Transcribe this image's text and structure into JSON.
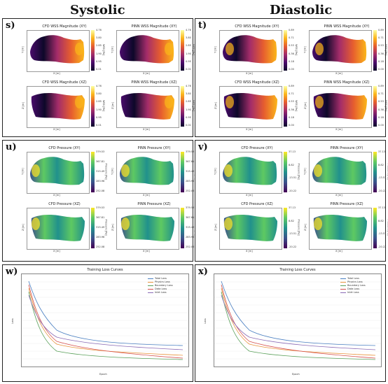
{
  "headers": {
    "systolic": "Systolic",
    "diastolic": "Diastolic"
  },
  "panels": {
    "s": {
      "label": "s)",
      "subplots": [
        {
          "title": "CFD WSS Magnitude (XY)",
          "cbar": [
            "4.76",
            "3.80",
            "2.85",
            "1.90",
            "0.95",
            "0.01"
          ],
          "cunit": "WSS [Pa]",
          "xlabel": "X [m]",
          "ylabel": "Y [m]",
          "cmap": "magma"
        },
        {
          "title": "PINN WSS Magnitude (XY)",
          "cbar": [
            "4.76",
            "3.80",
            "2.85",
            "1.90",
            "0.95",
            "0.01"
          ],
          "cunit": "WSS [Pa]",
          "xlabel": "X [m]",
          "ylabel": "Y [m]",
          "cmap": "magma"
        },
        {
          "title": "CFD WSS Magnitude (XZ)",
          "cbar": [
            "4.76",
            "3.80",
            "2.85",
            "1.90",
            "0.95",
            "0.01"
          ],
          "cunit": "WSS [Pa]",
          "xlabel": "X [m]",
          "ylabel": "Z [m]",
          "cmap": "magma"
        },
        {
          "title": "PINN WSS Magnitude (XZ)",
          "cbar": [
            "4.76",
            "3.80",
            "2.85",
            "1.90",
            "0.95",
            "0.01"
          ],
          "cunit": "WSS [Pa]",
          "xlabel": "X [m]",
          "ylabel": "Z [m]",
          "cmap": "magma"
        }
      ]
    },
    "t": {
      "label": "t)",
      "subplots": [
        {
          "title": "CFD WSS Magnitude (XY)",
          "cbar": [
            "0.89",
            "0.71",
            "0.53",
            "0.36",
            "0.18",
            "0.00"
          ],
          "cunit": "WSS [Pa]",
          "xlabel": "X [m]",
          "ylabel": "Y [m]",
          "cmap": "magma"
        },
        {
          "title": "PINN WSS Magnitude (XY)",
          "cbar": [
            "0.89",
            "0.71",
            "0.53",
            "0.36",
            "0.18",
            "0.00"
          ],
          "cunit": "WSS [Pa]",
          "xlabel": "X [m]",
          "ylabel": "Y [m]",
          "cmap": "magma"
        },
        {
          "title": "CFD WSS Magnitude (XZ)",
          "cbar": [
            "0.89",
            "0.71",
            "0.53",
            "0.36",
            "0.18",
            "0.00"
          ],
          "cunit": "WSS [Pa]",
          "xlabel": "X [m]",
          "ylabel": "Z [m]",
          "cmap": "magma"
        },
        {
          "title": "PINN WSS Magnitude (XZ)",
          "cbar": [
            "0.89",
            "0.71",
            "0.53",
            "0.36",
            "0.18",
            "0.00"
          ],
          "cunit": "WSS [Pa]",
          "xlabel": "X [m]",
          "ylabel": "Z [m]",
          "cmap": "magma"
        }
      ]
    },
    "u": {
      "label": "u)",
      "subplots": [
        {
          "title": "CFD Pressure (XY)",
          "cbar": [
            "379.53",
            "367.81",
            "315.49",
            "283.96",
            "252.08"
          ],
          "cunit": "Pressure [Pa]",
          "xlabel": "X [m]",
          "ylabel": "Y [m]",
          "cmap": "viridis"
        },
        {
          "title": "PINN Pressure (XY)",
          "cbar": [
            "379.53",
            "367.81",
            "315.49",
            "283.96",
            "252.08"
          ],
          "cunit": "Pressure [Pa]",
          "xlabel": "X [m]",
          "ylabel": "Y [m]",
          "cmap": "viridis"
        },
        {
          "title": "CFD Pressure (XZ)",
          "cbar": [
            "379.53",
            "367.81",
            "315.49",
            "283.96",
            "252.08"
          ],
          "cunit": "Pressure [Pa]",
          "xlabel": "X [m]",
          "ylabel": "Z [m]",
          "cmap": "viridis"
        },
        {
          "title": "PINN Pressure (XZ)",
          "cbar": [
            "379.53",
            "367.81",
            "315.49",
            "283.96",
            "252.08"
          ],
          "cunit": "Pressure [Pa]",
          "xlabel": "X [m]",
          "ylabel": "Z [m]",
          "cmap": "viridis"
        }
      ]
    },
    "v": {
      "label": "v)",
      "subplots": [
        {
          "title": "CFD Pressure (XY)",
          "cbar": [
            "37.13",
            "8.82",
            "-13.51",
            "-20.22"
          ],
          "cunit": "Pressure [Pa]",
          "xlabel": "X [m]",
          "ylabel": "Y [m]",
          "cmap": "viridis"
        },
        {
          "title": "PINN Pressure (XY)",
          "cbar": [
            "37.13",
            "8.82",
            "-13.51",
            "-20.22"
          ],
          "cunit": "Pressure [Pa]",
          "xlabel": "X [m]",
          "ylabel": "Y [m]",
          "cmap": "viridis"
        },
        {
          "title": "CFD Pressure (XZ)",
          "cbar": [
            "37.13",
            "8.82",
            "-13.51",
            "-20.22"
          ],
          "cunit": "Pressure [Pa]",
          "xlabel": "X [m]",
          "ylabel": "Z [m]",
          "cmap": "viridis"
        },
        {
          "title": "PINN Pressure (XZ)",
          "cbar": [
            "37.13",
            "8.82",
            "-13.51",
            "-20.22"
          ],
          "cunit": "Pressure [Pa]",
          "xlabel": "X [m]",
          "ylabel": "Z [m]",
          "cmap": "viridis"
        }
      ]
    },
    "w": {
      "label": "w)",
      "title": "Training Loss Curves",
      "xlabel": "Epoch",
      "ylabel": "Loss"
    },
    "x": {
      "label": "x)",
      "title": "Training Loss Curves",
      "xlabel": "Epoch",
      "ylabel": "Loss"
    }
  },
  "legend": [
    {
      "name": "Total Loss",
      "color": "#4a7fc1"
    },
    {
      "name": "Physics Loss",
      "color": "#e8923a"
    },
    {
      "name": "Boundary Loss",
      "color": "#5aa05a"
    },
    {
      "name": "Data Loss",
      "color": "#d6504d"
    },
    {
      "name": "Inlet Loss",
      "color": "#8a6bb5"
    }
  ],
  "colors": {
    "magma": [
      "#0d0829",
      "#4a0c6b",
      "#a32c6a",
      "#e65d2f",
      "#fbb61a",
      "#fcffa4"
    ],
    "viridis": [
      "#440154",
      "#3b528b",
      "#21918c",
      "#5ec962",
      "#fde725"
    ]
  }
}
